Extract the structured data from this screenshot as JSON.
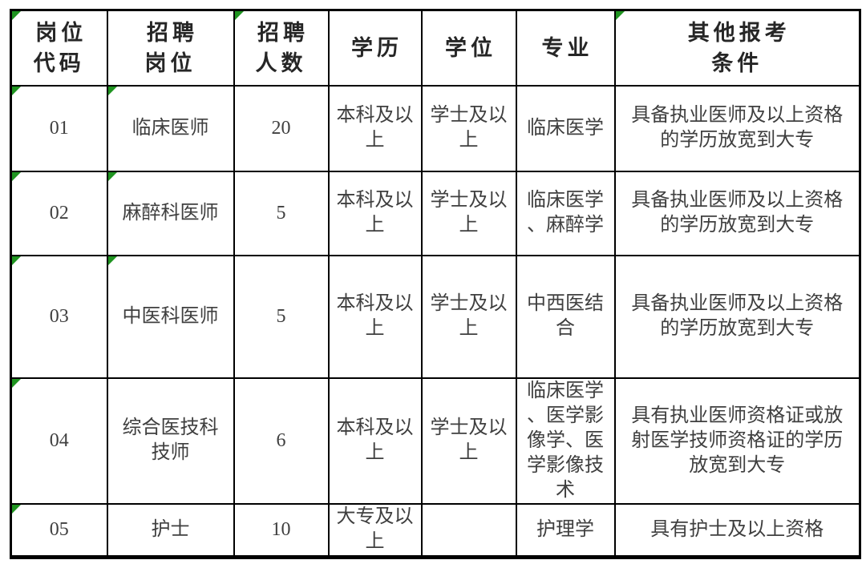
{
  "colors": {
    "flag_green": "#1f9420",
    "border": "#000000",
    "header_text": "#262626",
    "body_text": "#3f3f3f",
    "background": "#ffffff"
  },
  "table": {
    "headers": [
      {
        "label": "岗位\n代码",
        "flag": true
      },
      {
        "label": "招聘\n岗位",
        "flag": false
      },
      {
        "label": "招聘\n人数",
        "flag": true
      },
      {
        "label": "学历",
        "flag": false
      },
      {
        "label": "学位",
        "flag": false
      },
      {
        "label": "专业",
        "flag": false
      },
      {
        "label": "其他报考\n条件",
        "flag": true
      }
    ],
    "rows": [
      {
        "code": "01",
        "position": "临床医师",
        "headcount": "20",
        "education": "本科及以\n上",
        "degree": "学士及以\n上",
        "major": "临床医学",
        "requirements": "具备执业医师及以上资格\n的学历放宽到大专"
      },
      {
        "code": "02",
        "position": "麻醉科医师",
        "headcount": "5",
        "education": "本科及以\n上",
        "degree": "学士及以\n上",
        "major": "临床医学\n、麻醉学",
        "requirements": "具备执业医师及以上资格\n的学历放宽到大专"
      },
      {
        "code": "03",
        "position": "中医科医师",
        "headcount": "5",
        "education": "本科及以\n上",
        "degree": "学士及以\n上",
        "major": "中西医结\n合",
        "requirements": "具备执业医师及以上资格\n的学历放宽到大专"
      },
      {
        "code": "04",
        "position": "综合医技科\n技师",
        "headcount": "6",
        "education": "本科及以\n上",
        "degree": "学士及以\n上",
        "major": "临床医学\n、医学影\n像学、医\n学影像技\n术",
        "requirements": "具有执业医师资格证或放\n射医学技师资格证的学历\n放宽到大专"
      },
      {
        "code": "05",
        "position": "护士",
        "headcount": "10",
        "education": "大专及以\n上",
        "degree": "",
        "major": "护理学",
        "requirements": "具有护士及以上资格"
      }
    ]
  }
}
